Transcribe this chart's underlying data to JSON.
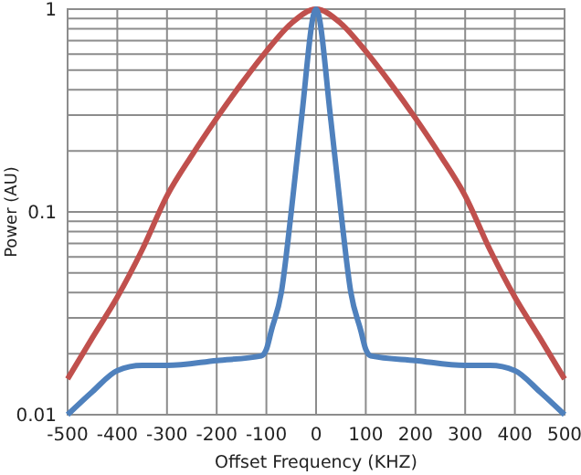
{
  "chart_data": {
    "type": "line",
    "xlabel": "Offset Frequency (KHZ)",
    "ylabel": "Power (AU)",
    "log": true,
    "grid": true,
    "xlim": [
      -500,
      500
    ],
    "xticks": [
      -500,
      -400,
      -300,
      -200,
      -100,
      0,
      100,
      200,
      300,
      400,
      500
    ],
    "ylim": [
      0.01,
      1
    ],
    "yticks": [
      0.01,
      {
        "value": 0.02,
        "label": null
      },
      {
        "value": 0.03,
        "label": null
      },
      {
        "value": 0.04,
        "label": null
      },
      {
        "value": 0.05,
        "label": null
      },
      {
        "value": 0.06,
        "label": null
      },
      {
        "value": 0.07,
        "label": null
      },
      {
        "value": 0.08,
        "label": null
      },
      {
        "value": 0.09,
        "label": null
      },
      0.1,
      {
        "value": 0.2,
        "label": null
      },
      {
        "value": 0.3,
        "label": null
      },
      {
        "value": 0.4,
        "label": null
      },
      {
        "value": 0.5,
        "label": null
      },
      {
        "value": 0.6,
        "label": null
      },
      {
        "value": 0.7,
        "label": null
      },
      {
        "value": 0.8,
        "label": null
      },
      {
        "value": 0.9,
        "label": null
      },
      1
    ],
    "series": [
      {
        "color": "#c0504d",
        "x": [
          -500,
          -450,
          -400,
          -350,
          -300,
          -250,
          -200,
          -150,
          -100,
          -50,
          0,
          50,
          100,
          150,
          200,
          250,
          300,
          350,
          400,
          450,
          500
        ],
        "values": [
          0.015,
          0.024,
          0.038,
          0.065,
          0.12,
          0.19,
          0.29,
          0.43,
          0.62,
          0.85,
          1,
          0.85,
          0.62,
          0.43,
          0.29,
          0.19,
          0.12,
          0.065,
          0.038,
          0.024,
          0.015
        ]
      },
      {
        "color": "#4f81bd",
        "x": [
          -500,
          -450,
          -400,
          -350,
          -300,
          -200,
          -110,
          -100,
          -90,
          -70,
          -50,
          -30,
          0,
          30,
          50,
          70,
          90,
          100,
          110,
          200,
          300,
          350,
          400,
          450,
          500
        ],
        "values": [
          0.01,
          0.013,
          0.0165,
          0.0175,
          0.0175,
          0.0185,
          0.0195,
          0.021,
          0.026,
          0.04,
          0.1,
          0.28,
          1,
          0.28,
          0.1,
          0.04,
          0.026,
          0.021,
          0.0195,
          0.0185,
          0.0175,
          0.0175,
          0.0165,
          0.013,
          0.01
        ]
      }
    ]
  }
}
